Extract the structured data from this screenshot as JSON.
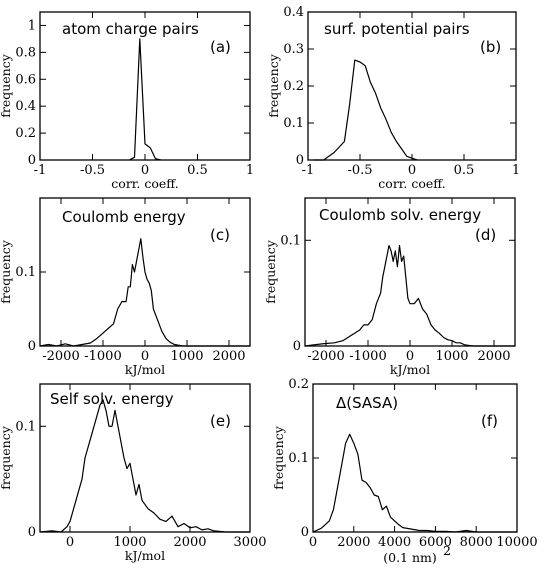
{
  "chart_data": [
    {
      "type": "line",
      "title": "atom charge pairs",
      "tag": "(a)",
      "xlabel": "corr. coeff.",
      "ylabel": "frequency",
      "xlim": [
        -1,
        1
      ],
      "ylim": [
        0,
        1.1
      ],
      "xticks": [
        -1,
        -0.5,
        0,
        0.5,
        1
      ],
      "xtick_labels": [
        "-1",
        "-0.5",
        "0",
        "0.5",
        "1"
      ],
      "yticks": [
        0,
        0.2,
        0.4,
        0.6,
        0.8,
        1
      ],
      "ytick_labels": [
        "0",
        "0.2",
        "0.4",
        "0.6",
        "0.8",
        "1"
      ],
      "x": [
        -0.15,
        -0.1,
        -0.05,
        0.0,
        0.05,
        0.1,
        0.15
      ],
      "y": [
        0,
        0.02,
        0.9,
        0.12,
        0.09,
        0.01,
        0
      ]
    },
    {
      "type": "line",
      "title": "surf. potential pairs",
      "tag": "(b)",
      "xlabel": "corr. coeff.",
      "ylabel": "frequency",
      "xlim": [
        -1,
        1
      ],
      "ylim": [
        0,
        0.4
      ],
      "xticks": [
        -1,
        -0.5,
        0,
        0.5,
        1
      ],
      "xtick_labels": [
        "-1",
        "-0.5",
        "0",
        "0.5",
        "1"
      ],
      "yticks": [
        0,
        0.1,
        0.2,
        0.3,
        0.4
      ],
      "ytick_labels": [
        "0",
        "0.1",
        "0.2",
        "0.3",
        "0.4"
      ],
      "x": [
        -0.95,
        -0.85,
        -0.75,
        -0.65,
        -0.6,
        -0.55,
        -0.5,
        -0.45,
        -0.4,
        -0.35,
        -0.3,
        -0.25,
        -0.2,
        -0.15,
        -0.1,
        -0.05,
        0,
        0.05
      ],
      "y": [
        0,
        0.0,
        0.02,
        0.05,
        0.15,
        0.27,
        0.265,
        0.255,
        0.21,
        0.18,
        0.14,
        0.11,
        0.075,
        0.05,
        0.03,
        0.01,
        0.005,
        0
      ]
    },
    {
      "type": "line",
      "title": "Coulomb energy",
      "tag": "(c)",
      "xlabel": "kJ/mol",
      "ylabel": "frequency",
      "xlim": [
        -2500,
        2500
      ],
      "ylim": [
        0,
        0.2
      ],
      "xticks": [
        -2000,
        -1000,
        0,
        1000,
        2000
      ],
      "xtick_labels": [
        "-2000",
        "-1000",
        "0",
        "1000",
        "2000"
      ],
      "yticks": [
        0,
        0.1
      ],
      "ytick_labels": [
        "0",
        "0.1"
      ],
      "x": [
        -2500,
        -2300,
        -2100,
        -1900,
        -1700,
        -1500,
        -1300,
        -1150,
        -1050,
        -950,
        -850,
        -750,
        -650,
        -550,
        -450,
        -400,
        -350,
        -300,
        -250,
        -200,
        -150,
        -100,
        -50,
        0,
        50,
        100,
        150,
        200,
        300,
        400,
        500,
        600,
        700,
        900,
        1200,
        1600,
        2000,
        2500
      ],
      "y": [
        0,
        0.002,
        0,
        0.003,
        0,
        0.002,
        0.004,
        0.01,
        0.015,
        0.02,
        0.025,
        0.03,
        0.05,
        0.06,
        0.06,
        0.08,
        0.08,
        0.11,
        0.1,
        0.115,
        0.13,
        0.145,
        0.12,
        0.1,
        0.09,
        0.085,
        0.075,
        0.05,
        0.035,
        0.02,
        0.01,
        0.005,
        0.002,
        0,
        0,
        0,
        0,
        0
      ]
    },
    {
      "type": "line",
      "title": "Coulomb solv. energy",
      "tag": "(d)",
      "xlabel": "kJ/mol",
      "ylabel": "frequency",
      "xlim": [
        -2500,
        2500
      ],
      "ylim": [
        0,
        0.14
      ],
      "xticks": [
        -2000,
        -1000,
        0,
        1000,
        2000
      ],
      "xtick_labels": [
        "-2000",
        "-1000",
        "0",
        "1000",
        "2000"
      ],
      "yticks": [
        0,
        0.1
      ],
      "ytick_labels": [
        "0",
        "0.1"
      ],
      "x": [
        -2500,
        -2100,
        -1800,
        -1600,
        -1400,
        -1200,
        -1100,
        -1000,
        -900,
        -800,
        -700,
        -650,
        -600,
        -550,
        -500,
        -450,
        -400,
        -350,
        -300,
        -250,
        -200,
        -150,
        -100,
        -50,
        0,
        100,
        200,
        300,
        400,
        500,
        600,
        700,
        800,
        900,
        1000,
        1100,
        1200,
        1300,
        1500,
        2000,
        2500
      ],
      "y": [
        0,
        0.002,
        0.003,
        0.005,
        0.01,
        0.015,
        0.02,
        0.02,
        0.025,
        0.04,
        0.05,
        0.065,
        0.075,
        0.085,
        0.095,
        0.09,
        0.08,
        0.09,
        0.075,
        0.095,
        0.08,
        0.085,
        0.065,
        0.045,
        0.04,
        0.04,
        0.045,
        0.035,
        0.03,
        0.02,
        0.015,
        0.012,
        0.008,
        0.006,
        0.005,
        0.003,
        0.003,
        0.001,
        0,
        0,
        0
      ]
    },
    {
      "type": "line",
      "title": "Self solv. energy",
      "tag": "(e)",
      "xlabel": "kJ/mol",
      "ylabel": "frequency",
      "xlim": [
        -500,
        3000
      ],
      "ylim": [
        0,
        0.14
      ],
      "xticks": [
        0,
        1000,
        2000,
        3000
      ],
      "xtick_labels": [
        "0",
        "1000",
        "2000",
        "3000"
      ],
      "yticks": [
        0,
        0.1
      ],
      "ytick_labels": [
        "0",
        "0.1"
      ],
      "x": [
        -500,
        -300,
        -150,
        -50,
        0,
        50,
        100,
        150,
        200,
        250,
        300,
        350,
        400,
        450,
        500,
        550,
        600,
        650,
        700,
        750,
        800,
        850,
        900,
        950,
        1000,
        1050,
        1100,
        1150,
        1200,
        1300,
        1400,
        1500,
        1600,
        1700,
        1800,
        1900,
        2000,
        2100,
        2200,
        2300,
        2400,
        2600,
        3000
      ],
      "y": [
        0,
        0.001,
        0,
        0.005,
        0.01,
        0.02,
        0.03,
        0.04,
        0.05,
        0.07,
        0.08,
        0.09,
        0.1,
        0.11,
        0.12,
        0.125,
        0.115,
        0.1,
        0.1,
        0.115,
        0.1,
        0.085,
        0.07,
        0.06,
        0.065,
        0.05,
        0.035,
        0.045,
        0.03,
        0.022,
        0.018,
        0.012,
        0.01,
        0.015,
        0.005,
        0.008,
        0.004,
        0.005,
        0.002,
        0.003,
        0.001,
        0,
        0
      ]
    },
    {
      "type": "line",
      "title": "Δ(SASA)",
      "tag": "(f)",
      "xlabel": "(0.1 nm)2",
      "xlabel_main": "(0.1 nm)",
      "xlabel_sup": "2",
      "ylabel": "frequency",
      "xlim": [
        0,
        10000
      ],
      "ylim": [
        0,
        0.2
      ],
      "xticks": [
        0,
        2000,
        4000,
        6000,
        8000,
        10000
      ],
      "xtick_labels": [
        "0",
        "2000",
        "4000",
        "6000",
        "8000",
        "10000"
      ],
      "yticks": [
        0,
        0.1,
        0.2
      ],
      "ytick_labels": [
        "0",
        "0.1",
        "0.2"
      ],
      "x": [
        0,
        400,
        800,
        1000,
        1200,
        1400,
        1600,
        1800,
        2000,
        2200,
        2400,
        2600,
        2800,
        3000,
        3200,
        3400,
        3600,
        3800,
        4000,
        4200,
        4400,
        4800,
        5200,
        5600,
        6000,
        6500,
        7000,
        7500,
        8000,
        10000
      ],
      "y": [
        0,
        0.005,
        0.015,
        0.03,
        0.06,
        0.09,
        0.12,
        0.132,
        0.12,
        0.105,
        0.07,
        0.067,
        0.06,
        0.05,
        0.048,
        0.03,
        0.035,
        0.02,
        0.015,
        0.01,
        0.006,
        0.004,
        0.002,
        0.002,
        0.001,
        0.001,
        0,
        0.002,
        0,
        0
      ]
    }
  ]
}
